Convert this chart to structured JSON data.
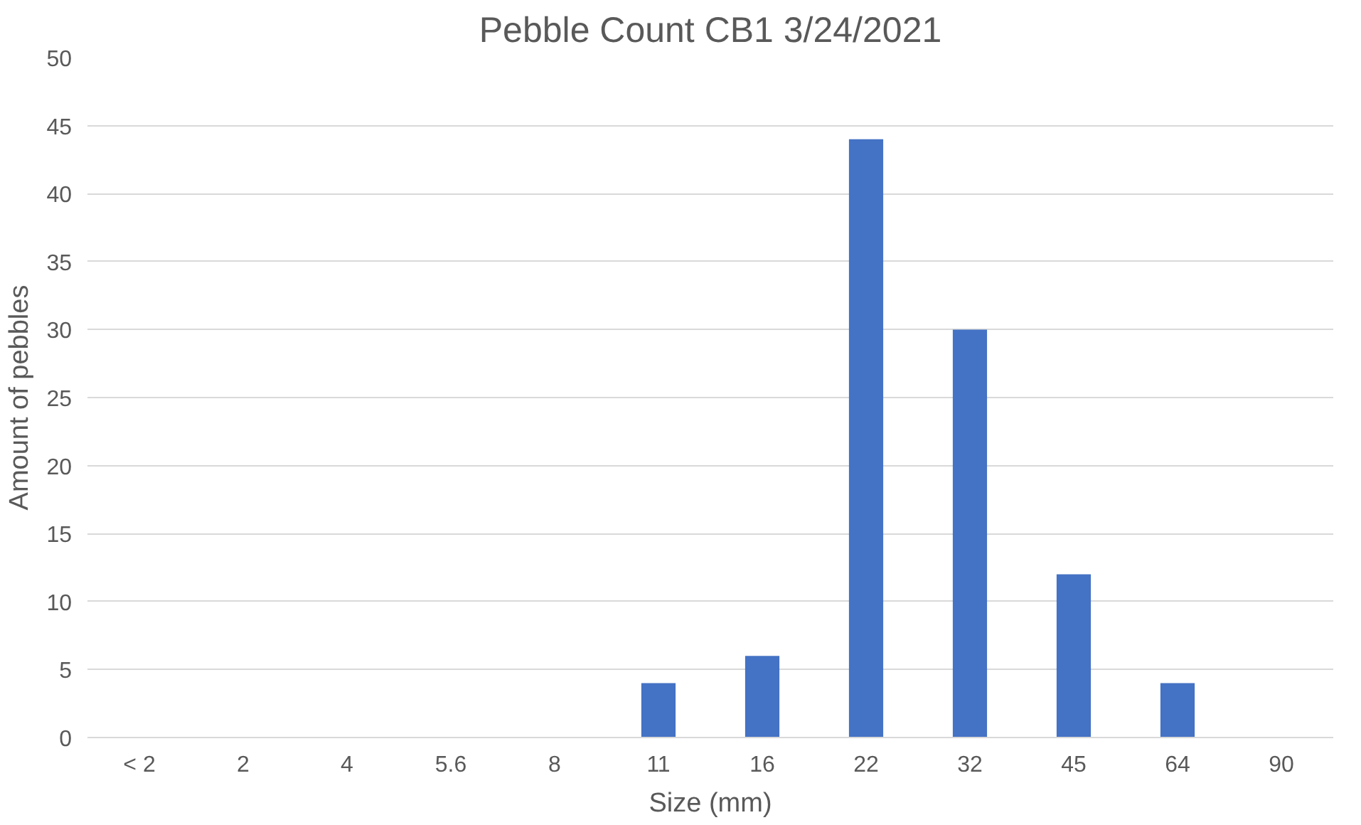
{
  "chart_data": {
    "type": "bar",
    "title": "Pebble Count CB1 3/24/2021",
    "xlabel": "Size (mm)",
    "ylabel": "Amount of pebbles",
    "categories": [
      "< 2",
      "2",
      "4",
      "5.6",
      "8",
      "11",
      "16",
      "22",
      "32",
      "45",
      "64",
      "90"
    ],
    "values": [
      0,
      0,
      0,
      0,
      0,
      4,
      6,
      44,
      30,
      12,
      4,
      0
    ],
    "color": "#4472c4",
    "ylim": [
      0,
      50
    ],
    "yticks": [
      0,
      5,
      10,
      15,
      20,
      25,
      30,
      35,
      40,
      45,
      50
    ],
    "grid": "y"
  }
}
